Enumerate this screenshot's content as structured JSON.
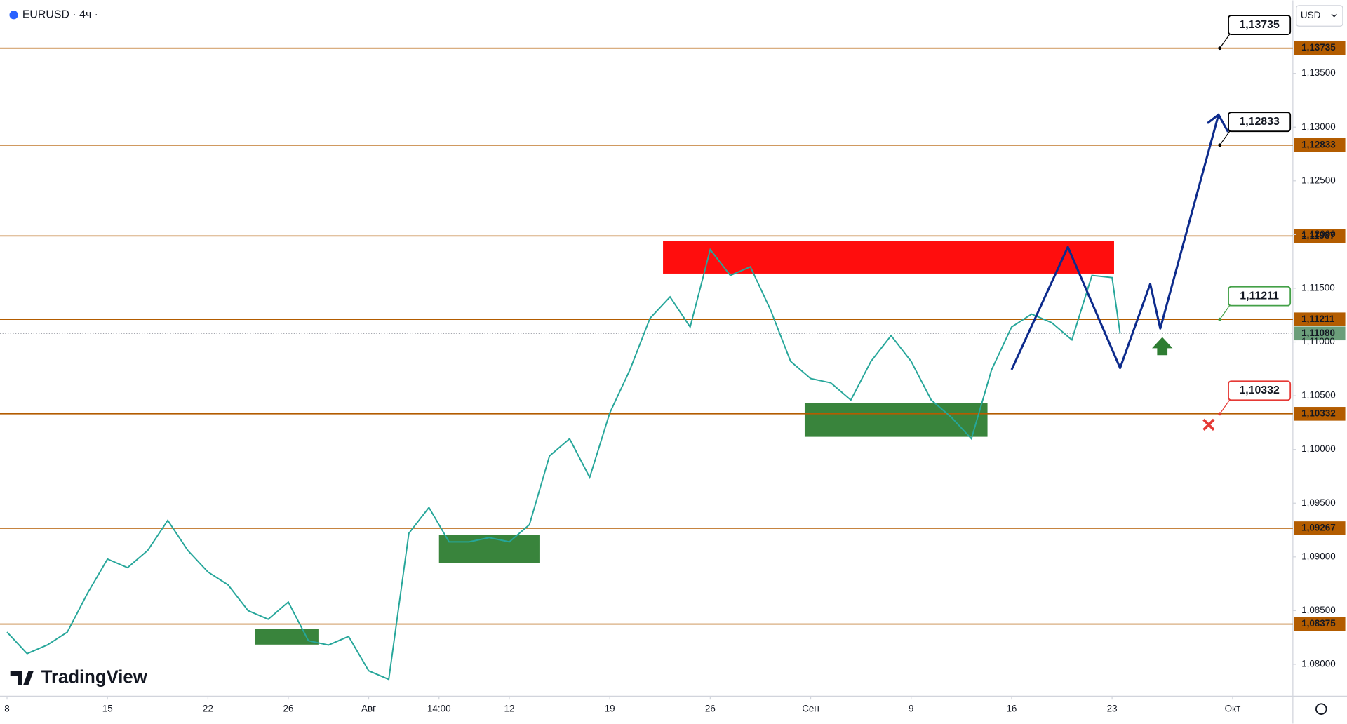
{
  "chart_data": {
    "type": "line",
    "title": "EURUSD · 4ч ·",
    "currency": "USD",
    "brand": "TradingView",
    "x": [
      0,
      1,
      2,
      3,
      4,
      5,
      6,
      7,
      8,
      9,
      10,
      11,
      12,
      13,
      14,
      15,
      16,
      17,
      18,
      19,
      20,
      21,
      22,
      23,
      24,
      25,
      26,
      27,
      28,
      29,
      30,
      31,
      32,
      33,
      34,
      35,
      36,
      37,
      38,
      39,
      40,
      41,
      42,
      43,
      44,
      45,
      46,
      47,
      48,
      49,
      50,
      51,
      52,
      53,
      54,
      55,
      55.4
    ],
    "values": [
      1.083,
      1.081,
      1.0818,
      1.083,
      1.0866,
      1.0898,
      1.089,
      1.0906,
      1.0934,
      1.0906,
      1.0886,
      1.0874,
      1.085,
      1.0842,
      1.0858,
      1.0822,
      1.0818,
      1.0826,
      1.0794,
      1.0786,
      1.0922,
      1.0946,
      1.0914,
      1.0914,
      1.0918,
      1.0914,
      1.093,
      1.0994,
      1.101,
      1.0974,
      1.1034,
      1.1074,
      1.1122,
      1.1142,
      1.1114,
      1.1186,
      1.1162,
      1.117,
      1.113,
      1.1082,
      1.1066,
      1.1062,
      1.1046,
      1.1082,
      1.1106,
      1.1082,
      1.1046,
      1.103,
      1.101,
      1.1074,
      1.1114,
      1.1126,
      1.1118,
      1.1102,
      1.1162,
      1.116,
      1.1108
    ],
    "color": "#26a69a",
    "xlim": [
      -0.35,
      64
    ],
    "xticks": [
      {
        "value": 0,
        "label": "8"
      },
      {
        "value": 5,
        "label": "15"
      },
      {
        "value": 10,
        "label": "22"
      },
      {
        "value": 14,
        "label": "26"
      },
      {
        "value": 18,
        "label": "Авг"
      },
      {
        "value": 21.5,
        "label": "14:00"
      },
      {
        "value": 25,
        "label": "12"
      },
      {
        "value": 30,
        "label": "19"
      },
      {
        "value": 35,
        "label": "26"
      },
      {
        "value": 40,
        "label": "Сен"
      },
      {
        "value": 45,
        "label": "9"
      },
      {
        "value": 50,
        "label": "16"
      },
      {
        "value": 55,
        "label": "23"
      },
      {
        "value": 61,
        "label": "Окт"
      }
    ],
    "ylim": [
      1.07704,
      1.1418
    ],
    "yticks": [
      {
        "value": 1.135,
        "label": "1,13500"
      },
      {
        "value": 1.13,
        "label": "1,13000"
      },
      {
        "value": 1.125,
        "label": "1,12500"
      },
      {
        "value": 1.12,
        "label": "1,12000"
      },
      {
        "value": 1.115,
        "label": "1,11500"
      },
      {
        "value": 1.11,
        "label": "1,11000"
      },
      {
        "value": 1.105,
        "label": "1,10500"
      },
      {
        "value": 1.1,
        "label": "1,10000"
      },
      {
        "value": 1.095,
        "label": "1,09500"
      },
      {
        "value": 1.09,
        "label": "1,09000"
      },
      {
        "value": 1.085,
        "label": "1,08500"
      },
      {
        "value": 1.08,
        "label": "1,08000"
      }
    ],
    "levels": [
      {
        "value": 1.13735,
        "label": "1,13735",
        "callout_color": "#000000"
      },
      {
        "value": 1.12833,
        "label": "1,12833",
        "callout_color": "#000000"
      },
      {
        "value": 1.11987,
        "label": "1,11987"
      },
      {
        "value": 1.11211,
        "label": "1,11211",
        "callout_color": "#43a047"
      },
      {
        "value": 1.10332,
        "label": "1,10332",
        "callout_color": "#e53935"
      },
      {
        "value": 1.09267,
        "label": "1,09267"
      },
      {
        "value": 1.08375,
        "label": "1,08375"
      }
    ],
    "level_color": "#b35c00",
    "current": {
      "value": 1.1108,
      "label": "1,11080"
    },
    "zones": [
      {
        "x": [
          32.65,
          55.1
        ],
        "y": [
          1.11637,
          1.11941
        ],
        "color": "#ff0000"
      },
      {
        "x": [
          39.7,
          48.8
        ],
        "y": [
          1.10118,
          1.1043
        ],
        "color": "#2e7d32"
      },
      {
        "x": [
          21.5,
          26.5
        ],
        "y": [
          1.08944,
          1.09207
        ],
        "color": "#2e7d32"
      },
      {
        "x": [
          12.35,
          15.5
        ],
        "y": [
          1.08184,
          1.08328
        ],
        "color": "#2e7d32"
      }
    ],
    "projection": {
      "x": [
        50,
        52.8,
        55.4,
        56.9,
        57.4,
        60.3
      ],
      "values": [
        1.10742,
        1.11885,
        1.10758,
        1.11541,
        1.11126,
        1.13116
      ],
      "color": "#0d2b8c"
    }
  }
}
